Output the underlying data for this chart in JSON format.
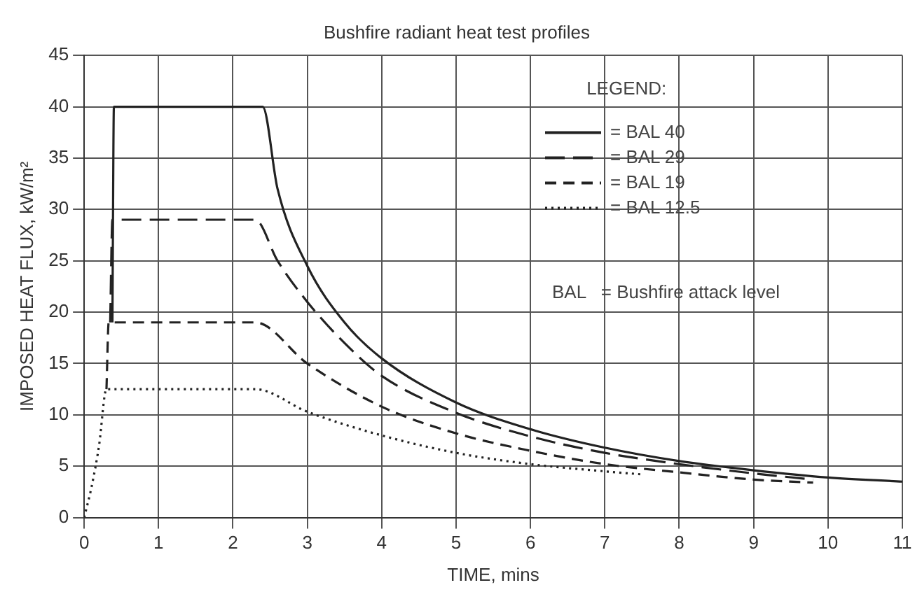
{
  "chart_data": {
    "type": "line",
    "title": "Bushfire radiant heat test profiles",
    "xlabel": "TIME, mins",
    "ylabel": "IMPOSED HEAT FLUX, kW/m²",
    "legend_title": "LEGEND:",
    "annotations": [
      "BAL   = Bushfire attack level"
    ],
    "xlim": [
      0,
      11
    ],
    "xticks": [
      0,
      1,
      2,
      3,
      4,
      5,
      6,
      7,
      8,
      9,
      10,
      11
    ],
    "ylim": [
      0,
      45
    ],
    "yticks": [
      0,
      5,
      10,
      15,
      20,
      25,
      30,
      35,
      40,
      45
    ],
    "grid": true,
    "legend": "top right",
    "marker": "none",
    "series": [
      {
        "name": "= BAL 40",
        "color": "#222222",
        "line_style": "solid",
        "x": [
          0.38,
          0.4,
          2.4,
          2.6,
          3,
          3.5,
          4,
          5,
          6,
          7,
          8,
          9,
          10,
          11
        ],
        "values": [
          19,
          40,
          40,
          32,
          24.5,
          19,
          15.5,
          11.2,
          8.6,
          6.8,
          5.5,
          4.6,
          3.9,
          3.5
        ]
      },
      {
        "name": "= BAL 29",
        "color": "#222222",
        "line_style": "dashed",
        "x": [
          0.35,
          0.38,
          2.3,
          2.6,
          3,
          3.5,
          4,
          5,
          6,
          7,
          8,
          9,
          9.8
        ],
        "values": [
          19,
          29,
          29,
          25,
          21,
          17,
          13.8,
          10.2,
          7.9,
          6.3,
          5.2,
          4.3,
          3.7
        ]
      },
      {
        "name": "= BAL 19",
        "color": "#222222",
        "line_style": "dashed",
        "x": [
          0.3,
          0.33,
          2.3,
          3,
          4,
          5,
          6,
          7,
          8,
          9,
          9.8
        ],
        "values": [
          12.5,
          19,
          19,
          15,
          10.8,
          8.2,
          6.5,
          5.2,
          4.4,
          3.7,
          3.4
        ]
      },
      {
        "name": "= BAL 12.5",
        "color": "#222222",
        "line_style": "dotted",
        "x": [
          0,
          0.1,
          0.2,
          0.3,
          2.3,
          3,
          4,
          5,
          6,
          7,
          7.5
        ],
        "values": [
          0,
          3,
          7,
          12.5,
          12.5,
          10.3,
          8,
          6.3,
          5.2,
          4.5,
          4.2
        ]
      }
    ]
  }
}
